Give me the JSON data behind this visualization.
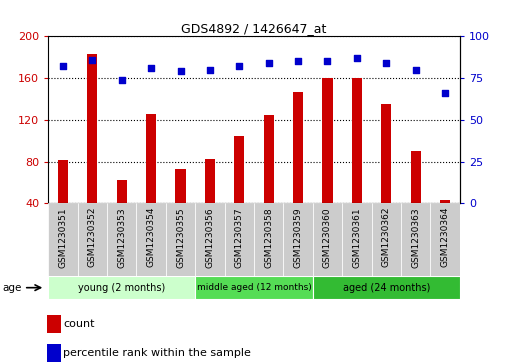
{
  "title": "GDS4892 / 1426647_at",
  "samples": [
    "GSM1230351",
    "GSM1230352",
    "GSM1230353",
    "GSM1230354",
    "GSM1230355",
    "GSM1230356",
    "GSM1230357",
    "GSM1230358",
    "GSM1230359",
    "GSM1230360",
    "GSM1230361",
    "GSM1230362",
    "GSM1230363",
    "GSM1230364"
  ],
  "counts": [
    81,
    183,
    62,
    126,
    73,
    82,
    104,
    125,
    147,
    160,
    160,
    135,
    90,
    43
  ],
  "percentiles": [
    82,
    86,
    74,
    81,
    79,
    80,
    82,
    84,
    85,
    85,
    87,
    84,
    80,
    66
  ],
  "ylim_left": [
    40,
    200
  ],
  "ylim_right": [
    0,
    100
  ],
  "yticks_left": [
    40,
    80,
    120,
    160,
    200
  ],
  "yticks_right": [
    0,
    25,
    50,
    75,
    100
  ],
  "groups": [
    {
      "label": "young (2 months)",
      "start": 0,
      "end": 5,
      "color": "#ccffcc"
    },
    {
      "label": "middle aged (12 months)",
      "start": 5,
      "end": 9,
      "color": "#66ee66"
    },
    {
      "label": "aged (24 months)",
      "start": 9,
      "end": 14,
      "color": "#33cc33"
    }
  ],
  "bar_color": "#cc0000",
  "dot_color": "#0000cc",
  "grid_color": "#000000",
  "tick_bg_color": "#cccccc",
  "xlabel_color_left": "#cc0000",
  "xlabel_color_right": "#0000cc",
  "age_label": "age",
  "legend_count": "count",
  "legend_percentile": "percentile rank within the sample"
}
